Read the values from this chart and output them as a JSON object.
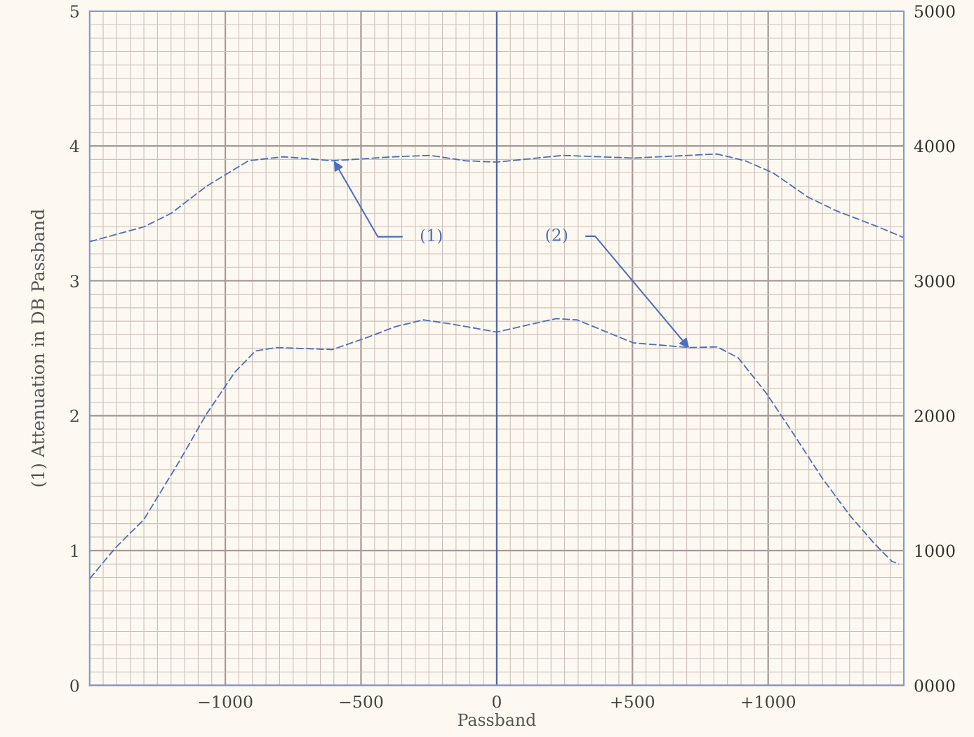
{
  "chart_data": {
    "type": "line",
    "xlabel": "Passband",
    "ylabel": "(1) Attenuation in DB Passband",
    "xlim": [
      -1500,
      1500
    ],
    "xticks": [
      {
        "value": -1000,
        "label": "−1000"
      },
      {
        "value": -500,
        "label": "−500"
      },
      0,
      {
        "value": 500,
        "label": "+500"
      },
      {
        "value": 1000,
        "label": "+1000"
      }
    ],
    "ylim": [
      0,
      5
    ],
    "yticks": [
      0,
      1,
      2,
      3,
      4,
      5
    ],
    "y2lim": [
      0,
      5000
    ],
    "y2ticks": [
      {
        "value": 0,
        "label": "0000"
      },
      1000,
      2000,
      3000,
      4000,
      5000
    ],
    "grid": true,
    "line_style": "dashed",
    "series": [
      {
        "color": "#4a6fc0",
        "x": [
          -1500,
          -1300,
          -1200,
          -1070,
          -915,
          -786,
          -606,
          -374,
          -245,
          -116,
          0,
          245,
          503,
          812,
          915,
          1018,
          1147,
          1250,
          1405,
          1500
        ],
        "values": [
          3.29,
          3.4,
          3.5,
          3.7,
          3.89,
          3.92,
          3.89,
          3.92,
          3.93,
          3.89,
          3.88,
          3.93,
          3.91,
          3.94,
          3.89,
          3.8,
          3.62,
          3.52,
          3.4,
          3.32
        ]
      },
      {
        "color": "#4a6fc0",
        "axis": "y2",
        "x": [
          -1500,
          -1405,
          -1300,
          -1173,
          -1070,
          -966,
          -889,
          -812,
          -606,
          -477,
          -374,
          -270,
          -168,
          0,
          219,
          296,
          503,
          709,
          812,
          889,
          992,
          1095,
          1198,
          1301,
          1392,
          1456,
          1482
        ],
        "values": [
          790,
          1020,
          1230,
          1650,
          2010,
          2320,
          2480,
          2505,
          2490,
          2580,
          2660,
          2710,
          2680,
          2620,
          2720,
          2710,
          2540,
          2505,
          2510,
          2430,
          2170,
          1860,
          1540,
          1260,
          1050,
          920,
          900
        ]
      }
    ],
    "ref_lines": [
      {
        "axis": "x",
        "value": 0,
        "color": "#4a5fa8",
        "line_style": "solid"
      }
    ],
    "annotations": [
      {
        "text": "(1)",
        "x": -600,
        "y": 3.89
      },
      {
        "text": "(2)",
        "x": 709,
        "y": 2.5
      }
    ]
  }
}
